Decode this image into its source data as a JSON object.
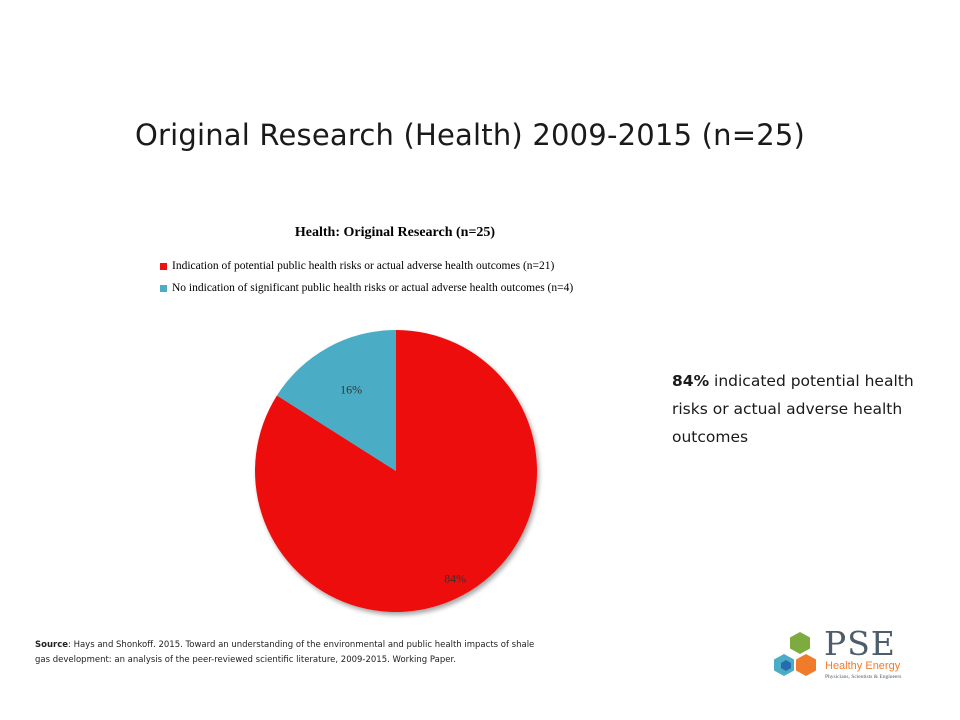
{
  "slide": {
    "title": "Original Research (Health) 2009-2015 (n=25)"
  },
  "chart_data": {
    "type": "pie",
    "title": "Health: Original Research (n=25)",
    "series": [
      {
        "name": "Indication of potential public health risks or actual adverse health outcomes (n=21)",
        "value": 21,
        "percent": 84,
        "label": "84%",
        "color": "#ee1111"
      },
      {
        "name": "No indication of significant public health risks or actual adverse health outcomes (n=4)",
        "value": 4,
        "percent": 16,
        "label": "16%",
        "color": "#4bacc6"
      }
    ],
    "legend_position": "top"
  },
  "callout": {
    "bold": "84%",
    "text": " indicated potential health risks or actual adverse health outcomes"
  },
  "source": {
    "label": "Source",
    "text": ": Hays and Shonkoff. 2015. Toward an understanding of the environmental and public health impacts of shale gas development: an analysis of the peer-reviewed scientific literature, 2009-2015. Working Paper."
  },
  "logo": {
    "name": "PSE",
    "subtitle": "Healthy Energy",
    "tagline": "Physicians, Scientists & Engineers",
    "colors": [
      "#7dab3f",
      "#4bacc6",
      "#f07b2b",
      "#1f5fa8"
    ]
  }
}
